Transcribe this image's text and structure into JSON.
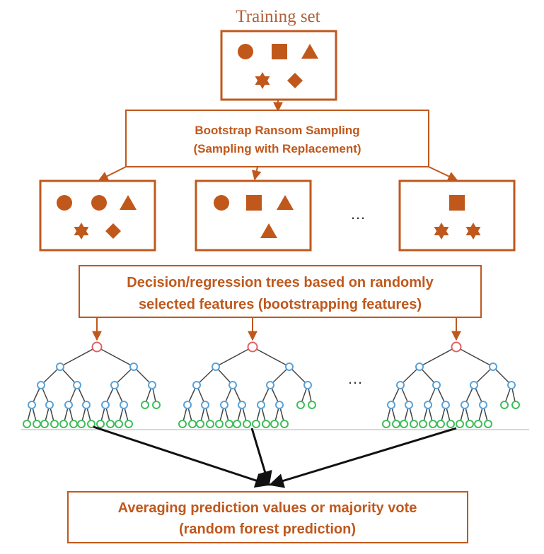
{
  "colors": {
    "accent": "#c0581c",
    "title": "#b0603a",
    "root_node": "#e06060",
    "inner_node": "#5ba3d9",
    "leaf_node": "#3fbf5a",
    "tree_edge": "#444444",
    "arrow": "#111111",
    "baseline": "#cccccc"
  },
  "training_set": {
    "title": "Training set",
    "shapes": [
      "circle-icon",
      "square-icon",
      "triangle-icon",
      "star-icon",
      "diamond-icon"
    ]
  },
  "bootstrap": {
    "line1": "Bootstrap Ransom Sampling",
    "line2": "(Sampling with Replacement)"
  },
  "samples": [
    {
      "shapes": [
        "circle-icon",
        "circle-icon",
        "triangle-icon",
        "star-icon",
        "diamond-icon"
      ]
    },
    {
      "shapes": [
        "circle-icon",
        "square-icon",
        "triangle-icon",
        "triangle-icon"
      ]
    },
    {
      "shapes": [
        "square-icon",
        "star-icon",
        "star-icon"
      ]
    }
  ],
  "ellipsis": "…",
  "trees_box": {
    "line1": "Decision/regression trees based on randomly",
    "line2": "selected features (bootstrapping features)"
  },
  "result": {
    "line1": "Averaging prediction values or majority vote",
    "line2": "(random forest prediction)"
  }
}
